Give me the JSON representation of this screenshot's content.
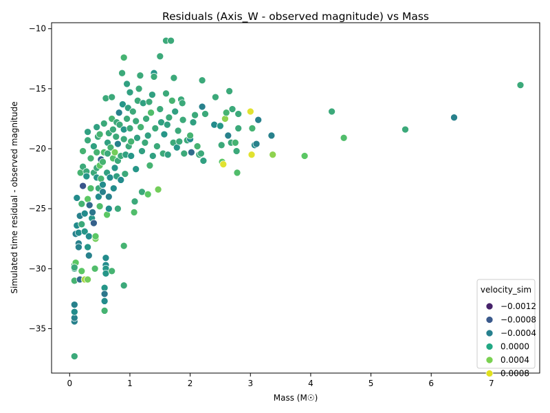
{
  "chart_data": {
    "type": "scatter",
    "title": "Residuals (Axis_W - observed magnitude) vs Mass",
    "xlabel": "Mass (M☉)",
    "ylabel": "Simulated time residual - observed magnitude",
    "xlim": [
      -0.3,
      7.8
    ],
    "ylim": [
      -38.7,
      -9.5
    ],
    "xticks": [
      0,
      1,
      2,
      3,
      4,
      5,
      6,
      7
    ],
    "yticks": [
      -35,
      -30,
      -25,
      -20,
      -15,
      -10
    ],
    "grid": false,
    "colormap": "viridis",
    "color_range": [
      -0.0014,
      0.0009
    ],
    "legend": {
      "title": "velocity_sim",
      "placement": "lower right",
      "entries": [
        {
          "label": "−0.0012",
          "value": -0.0012,
          "color": "#46226a"
        },
        {
          "label": "−0.0008",
          "value": -0.0008,
          "color": "#3b5a8c"
        },
        {
          "label": "−0.0004",
          "value": -0.0004,
          "color": "#26808e"
        },
        {
          "label": "0.0000",
          "value": 0.0,
          "color": "#22a884"
        },
        {
          "label": "0.0004",
          "value": 0.0004,
          "color": "#7ad151"
        },
        {
          "label": "0.0008",
          "value": 0.0008,
          "color": "#e0e01e"
        }
      ]
    },
    "points": [
      [
        0.08,
        -37.3,
        0.0
      ],
      [
        0.08,
        -34.4,
        -0.0004
      ],
      [
        0.08,
        -34.1,
        -0.0004
      ],
      [
        0.08,
        -33.6,
        -0.0003
      ],
      [
        0.08,
        -33.0,
        -0.0004
      ],
      [
        0.08,
        -31.0,
        0.0001
      ],
      [
        0.08,
        -30.0,
        -0.0001
      ],
      [
        0.08,
        -29.7,
        0.0001
      ],
      [
        0.1,
        -29.5,
        0.0003
      ],
      [
        0.08,
        -29.9,
        0.0
      ],
      [
        0.1,
        -27.1,
        -0.0004
      ],
      [
        0.12,
        -26.4,
        -0.0003
      ],
      [
        0.12,
        -24.1,
        -0.0003
      ],
      [
        0.15,
        -27.9,
        -0.0004
      ],
      [
        0.15,
        -28.2,
        -0.0004
      ],
      [
        0.15,
        -27.0,
        -0.0003
      ],
      [
        0.17,
        -25.6,
        -0.0004
      ],
      [
        0.17,
        -30.9,
        -0.0006
      ],
      [
        0.18,
        -22.0,
        0.0001
      ],
      [
        0.2,
        -30.2,
        0.0003
      ],
      [
        0.2,
        -26.3,
        0.0
      ],
      [
        0.2,
        -24.6,
        0.0001
      ],
      [
        0.22,
        -23.1,
        -0.0008
      ],
      [
        0.22,
        -21.5,
        0.0
      ],
      [
        0.22,
        -20.2,
        0.0001
      ],
      [
        0.25,
        -25.4,
        -0.0003
      ],
      [
        0.25,
        -26.9,
        -0.0002
      ],
      [
        0.25,
        -30.9,
        0.0006
      ],
      [
        0.28,
        -21.9,
        0.0
      ],
      [
        0.28,
        -22.3,
        -0.0002
      ],
      [
        0.3,
        -24.2,
        0.0003
      ],
      [
        0.3,
        -30.9,
        0.0004
      ],
      [
        0.3,
        -19.3,
        0.0
      ],
      [
        0.3,
        -18.6,
        -0.0001
      ],
      [
        0.3,
        -28.2,
        -0.0002
      ],
      [
        0.32,
        -28.9,
        -0.0004
      ],
      [
        0.32,
        -27.3,
        -0.0003
      ],
      [
        0.33,
        -24.7,
        -0.0006
      ],
      [
        0.35,
        -23.3,
        0.0002
      ],
      [
        0.35,
        -20.8,
        0.0001
      ],
      [
        0.37,
        -25.8,
        -0.0002
      ],
      [
        0.38,
        -25.3,
        -0.0005
      ],
      [
        0.4,
        -26.2,
        -0.0007
      ],
      [
        0.4,
        -22.0,
        0.0
      ],
      [
        0.4,
        -19.8,
        -0.0001
      ],
      [
        0.42,
        -30.0,
        0.0002
      ],
      [
        0.43,
        -27.5,
        0.0004
      ],
      [
        0.43,
        -27.3,
        0.0003
      ],
      [
        0.45,
        -22.4,
        -0.0002
      ],
      [
        0.45,
        -21.6,
        0.0
      ],
      [
        0.45,
        -20.3,
        0.0001
      ],
      [
        0.45,
        -18.2,
        -0.0001
      ],
      [
        0.47,
        -19.0,
        0.0
      ],
      [
        0.48,
        -24.0,
        -0.0003
      ],
      [
        0.48,
        -23.3,
        0.0
      ],
      [
        0.5,
        -21.4,
        0.0003
      ],
      [
        0.5,
        -18.8,
        0.0001
      ],
      [
        0.5,
        -24.8,
        0.0002
      ],
      [
        0.52,
        -20.9,
        -0.0007
      ],
      [
        0.52,
        -22.5,
        0.0001
      ],
      [
        0.55,
        -23.6,
        -0.0004
      ],
      [
        0.55,
        -23.0,
        -0.0003
      ],
      [
        0.55,
        -21.1,
        0.0001
      ],
      [
        0.57,
        -17.9,
        0.0
      ],
      [
        0.57,
        -20.3,
        0.0002
      ],
      [
        0.58,
        -31.6,
        -0.0002
      ],
      [
        0.58,
        -32.1,
        -0.0005
      ],
      [
        0.58,
        -32.7,
        -0.0003
      ],
      [
        0.58,
        -33.5,
        0.0001
      ],
      [
        0.6,
        -29.1,
        -0.0003
      ],
      [
        0.6,
        -29.7,
        -0.0003
      ],
      [
        0.6,
        -30.0,
        -0.0002
      ],
      [
        0.6,
        -30.4,
        -0.0002
      ],
      [
        0.6,
        -15.8,
        0.0
      ],
      [
        0.62,
        -25.5,
        0.0003
      ],
      [
        0.62,
        -22.0,
        -0.0001
      ],
      [
        0.63,
        -20.4,
        0.0
      ],
      [
        0.63,
        -19.5,
        -0.0001
      ],
      [
        0.65,
        -24.0,
        -0.0004
      ],
      [
        0.65,
        -25.0,
        -0.0003
      ],
      [
        0.65,
        -18.7,
        0.0
      ],
      [
        0.67,
        -22.4,
        -0.0003
      ],
      [
        0.68,
        -19.9,
        0.0001
      ],
      [
        0.7,
        -15.7,
        0.0
      ],
      [
        0.7,
        -17.5,
        0.0001
      ],
      [
        0.7,
        -30.2,
        0.0001
      ],
      [
        0.72,
        -20.8,
        0.0002
      ],
      [
        0.72,
        -18.4,
        0.0
      ],
      [
        0.73,
        -23.3,
        -0.0003
      ],
      [
        0.75,
        -21.6,
        -0.0002
      ],
      [
        0.75,
        -20.3,
        0.0004
      ],
      [
        0.77,
        -19.0,
        0.0
      ],
      [
        0.78,
        -17.8,
        0.0
      ],
      [
        0.78,
        -22.3,
        -0.0001
      ],
      [
        0.8,
        -25.0,
        0.0
      ],
      [
        0.8,
        -21.0,
        0.0
      ],
      [
        0.8,
        -19.6,
        -0.0004
      ],
      [
        0.82,
        -17.0,
        -0.0004
      ],
      [
        0.83,
        -18.0,
        0.0
      ],
      [
        0.85,
        -20.6,
        0.0
      ],
      [
        0.85,
        -22.6,
        -0.0003
      ],
      [
        0.87,
        -13.7,
        0.0
      ],
      [
        0.88,
        -16.3,
        -0.0002
      ],
      [
        0.9,
        -12.4,
        0.0001
      ],
      [
        0.9,
        -28.1,
        0.0001
      ],
      [
        0.9,
        -31.4,
        0.0
      ],
      [
        0.9,
        -18.4,
        -0.0002
      ],
      [
        0.9,
        -19.2,
        0.0
      ],
      [
        0.92,
        -22.1,
        0.0
      ],
      [
        0.93,
        -20.5,
        -0.0001
      ],
      [
        0.95,
        -14.6,
        -0.0001
      ],
      [
        0.95,
        -17.5,
        0.0
      ],
      [
        0.97,
        -16.6,
        -0.0001
      ],
      [
        0.98,
        -19.8,
        0.0
      ],
      [
        1.0,
        -15.3,
        -0.0001
      ],
      [
        1.0,
        -18.3,
        0.0
      ],
      [
        1.02,
        -19.4,
        0.0001
      ],
      [
        1.02,
        -20.6,
        -0.0002
      ],
      [
        1.05,
        -16.9,
        0.0
      ],
      [
        1.07,
        -25.3,
        0.0002
      ],
      [
        1.08,
        -24.4,
        0.0
      ],
      [
        1.1,
        -21.7,
        -0.0002
      ],
      [
        1.1,
        -17.7,
        0.0
      ],
      [
        1.12,
        -19.1,
        -0.0001
      ],
      [
        1.13,
        -16.0,
        0.0
      ],
      [
        1.15,
        -15.0,
        0.0
      ],
      [
        1.17,
        -13.9,
        0.0
      ],
      [
        1.18,
        -18.2,
        0.0001
      ],
      [
        1.2,
        -20.2,
        -0.0001
      ],
      [
        1.2,
        -23.6,
        0.0
      ],
      [
        1.22,
        -16.2,
        -0.0001
      ],
      [
        1.25,
        -19.5,
        0.0
      ],
      [
        1.27,
        -17.5,
        0.0
      ],
      [
        1.3,
        -23.8,
        0.0003
      ],
      [
        1.3,
        -18.9,
        -0.0001
      ],
      [
        1.32,
        -16.1,
        0.0
      ],
      [
        1.33,
        -21.4,
        0.0001
      ],
      [
        1.35,
        -17.0,
        0.0002
      ],
      [
        1.37,
        -15.5,
        -0.0001
      ],
      [
        1.38,
        -20.6,
        -0.0001
      ],
      [
        1.4,
        -13.7,
        -0.0002
      ],
      [
        1.4,
        -14.0,
        0.0
      ],
      [
        1.42,
        -18.3,
        0.0
      ],
      [
        1.45,
        -19.8,
        0.0
      ],
      [
        1.47,
        -23.4,
        0.0004
      ],
      [
        1.5,
        -12.3,
        0.0
      ],
      [
        1.5,
        -16.7,
        0.0
      ],
      [
        1.52,
        -17.8,
        -0.0001
      ],
      [
        1.55,
        -20.4,
        0.0
      ],
      [
        1.57,
        -18.8,
        -0.0002
      ],
      [
        1.6,
        -11.0,
        0.0
      ],
      [
        1.6,
        -15.4,
        0.0
      ],
      [
        1.62,
        -18.0,
        -0.0001
      ],
      [
        1.63,
        -20.5,
        -0.0001
      ],
      [
        1.65,
        -17.4,
        0.0
      ],
      [
        1.68,
        -11.0,
        0.0
      ],
      [
        1.7,
        -16.0,
        0.0001
      ],
      [
        1.72,
        -19.5,
        0.0
      ],
      [
        1.73,
        -14.1,
        0.0
      ],
      [
        1.75,
        -16.9,
        -0.0001
      ],
      [
        1.78,
        -19.9,
        -0.0002
      ],
      [
        1.8,
        -18.5,
        0.0
      ],
      [
        1.82,
        -19.4,
        0.0
      ],
      [
        1.85,
        -15.9,
        0.0
      ],
      [
        1.87,
        -16.2,
        0.0
      ],
      [
        1.88,
        -17.6,
        0.0
      ],
      [
        1.9,
        -20.4,
        0.0
      ],
      [
        1.95,
        -19.3,
        0.0
      ],
      [
        2.0,
        -19.2,
        -0.0003
      ],
      [
        2.0,
        -18.9,
        0.0001
      ],
      [
        2.02,
        -20.3,
        -0.0006
      ],
      [
        2.05,
        -17.8,
        -0.0001
      ],
      [
        2.08,
        -17.2,
        0.0
      ],
      [
        2.12,
        -19.8,
        0.0001
      ],
      [
        2.15,
        -20.5,
        0.0
      ],
      [
        2.18,
        -20.4,
        0.0
      ],
      [
        2.2,
        -14.3,
        0.0
      ],
      [
        2.2,
        -16.5,
        -0.0004
      ],
      [
        2.22,
        -21.0,
        -0.0001
      ],
      [
        2.25,
        -17.1,
        0.0
      ],
      [
        2.4,
        -18.0,
        -0.0003
      ],
      [
        2.42,
        -15.7,
        0.0
      ],
      [
        2.5,
        -18.1,
        -0.0002
      ],
      [
        2.52,
        -19.7,
        0.0
      ],
      [
        2.53,
        -21.1,
        0.0003
      ],
      [
        2.55,
        -21.3,
        0.0008
      ],
      [
        2.58,
        -17.5,
        0.0005
      ],
      [
        2.6,
        -17.0,
        0.0001
      ],
      [
        2.63,
        -18.9,
        -0.0004
      ],
      [
        2.65,
        -15.2,
        0.0
      ],
      [
        2.68,
        -19.5,
        0.0
      ],
      [
        2.7,
        -16.7,
        0.0
      ],
      [
        2.75,
        -19.5,
        0.0001
      ],
      [
        2.77,
        -20.2,
        0.0
      ],
      [
        2.78,
        -22.0,
        0.0002
      ],
      [
        2.8,
        -18.3,
        0.0
      ],
      [
        2.8,
        -17.1,
        0.0
      ],
      [
        3.0,
        -16.9,
        0.0008
      ],
      [
        3.02,
        -20.5,
        0.0008
      ],
      [
        3.03,
        -18.3,
        0.0001
      ],
      [
        3.07,
        -19.7,
        -0.0003
      ],
      [
        3.1,
        -19.6,
        -0.0004
      ],
      [
        3.13,
        -17.6,
        -0.0004
      ],
      [
        3.35,
        -18.9,
        -0.0004
      ],
      [
        3.37,
        -20.5,
        0.0005
      ],
      [
        3.9,
        -20.6,
        0.0003
      ],
      [
        4.35,
        -16.9,
        0.0
      ],
      [
        4.55,
        -19.1,
        0.0002
      ],
      [
        5.57,
        -18.4,
        0.0
      ],
      [
        6.38,
        -17.4,
        -0.0004
      ],
      [
        7.48,
        -14.7,
        0.0
      ]
    ]
  }
}
